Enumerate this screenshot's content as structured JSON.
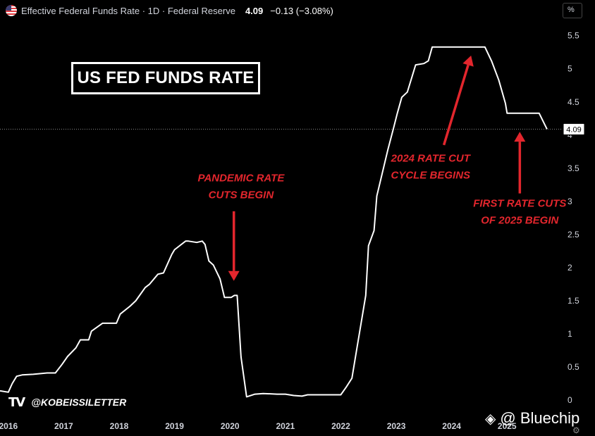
{
  "header": {
    "title": "Effective Federal Funds Rate · 1D · Federal Reserve",
    "last_value": "4.09",
    "change": "−0.13 (−3.08%)",
    "unit": "%"
  },
  "brand": {
    "logo": "TV",
    "handle": "@KOBEISSILETTER"
  },
  "watermark": {
    "icon": "binance-icon",
    "text": "@ Bluechip"
  },
  "colors": {
    "background": "#000000",
    "line": "#ffffff",
    "annotation": "#e3262d",
    "axis_text": "#d1d4dc"
  },
  "chart_data": {
    "type": "line",
    "title": "US FED FUNDS RATE",
    "xlabel": "",
    "ylabel": "%",
    "xlim": [
      2015.85,
      2025.9
    ],
    "ylim": [
      -0.18,
      5.72
    ],
    "yticks": [
      0,
      0.5,
      1,
      1.5,
      2,
      2.5,
      3,
      3.5,
      4,
      4.5,
      5,
      5.5
    ],
    "ytick_labels": [
      "0",
      "0.5",
      "1",
      "1.5",
      "2",
      "2.5",
      "3",
      "3.5",
      "4",
      "4.5",
      "5",
      "5.5"
    ],
    "xticks": [
      2016,
      2017,
      2018,
      2019,
      2020,
      2021,
      2022,
      2023,
      2024,
      2025
    ],
    "xtick_labels": [
      "2016",
      "2017",
      "2018",
      "2019",
      "2020",
      "2021",
      "2022",
      "2023",
      "2024",
      "2025"
    ],
    "last_value_label": "4.09",
    "last_value": 4.09,
    "series": [
      {
        "name": "Effective Federal Funds Rate",
        "x": [
          2015.85,
          2016.0,
          2016.07,
          2016.15,
          2016.25,
          2016.45,
          2016.7,
          2016.85,
          2016.97,
          2017.07,
          2017.22,
          2017.3,
          2017.45,
          2017.5,
          2017.7,
          2017.85,
          2017.95,
          2018.02,
          2018.2,
          2018.3,
          2018.47,
          2018.55,
          2018.7,
          2018.8,
          2018.95,
          2019.0,
          2019.2,
          2019.25,
          2019.4,
          2019.5,
          2019.55,
          2019.62,
          2019.7,
          2019.82,
          2019.9,
          2020.02,
          2020.08,
          2020.13,
          2020.2,
          2020.3,
          2020.45,
          2020.6,
          2020.85,
          2021.0,
          2021.15,
          2021.3,
          2021.4,
          2021.6,
          2021.8,
          2022.0,
          2022.1,
          2022.2,
          2022.3,
          2022.45,
          2022.5,
          2022.6,
          2022.65,
          2022.85,
          2022.95,
          2023.02,
          2023.1,
          2023.2,
          2023.35,
          2023.5,
          2023.58,
          2023.65,
          2023.8,
          2024.0,
          2024.3,
          2024.55,
          2024.6,
          2024.72,
          2024.85,
          2024.97,
          2025.0,
          2025.2,
          2025.45,
          2025.58,
          2025.72
        ],
        "values": [
          0.14,
          0.12,
          0.25,
          0.36,
          0.38,
          0.39,
          0.41,
          0.41,
          0.54,
          0.66,
          0.79,
          0.91,
          0.91,
          1.04,
          1.16,
          1.16,
          1.16,
          1.3,
          1.42,
          1.5,
          1.7,
          1.75,
          1.9,
          1.92,
          2.2,
          2.27,
          2.4,
          2.4,
          2.38,
          2.4,
          2.35,
          2.1,
          2.04,
          1.83,
          1.55,
          1.55,
          1.58,
          1.58,
          0.65,
          0.05,
          0.09,
          0.1,
          0.09,
          0.09,
          0.07,
          0.06,
          0.08,
          0.08,
          0.08,
          0.08,
          0.2,
          0.33,
          0.83,
          1.58,
          2.33,
          2.56,
          3.08,
          3.78,
          4.1,
          4.33,
          4.57,
          4.65,
          5.06,
          5.08,
          5.12,
          5.33,
          5.33,
          5.33,
          5.33,
          5.33,
          5.33,
          5.12,
          4.83,
          4.48,
          4.33,
          4.33,
          4.33,
          4.33,
          4.09
        ]
      }
    ],
    "annotations": [
      {
        "id": "pandemic",
        "lines": [
          "PANDEMIC RATE",
          "CUTS BEGIN"
        ],
        "text_x": 2020.2,
        "text_y": 3.3,
        "arrow_from": [
          2020.07,
          2.85
        ],
        "arrow_to": [
          2020.07,
          1.8
        ]
      },
      {
        "id": "cycle2024",
        "lines": [
          "2024 RATE CUT",
          "CYCLE BEGINS"
        ],
        "text_x": 2023.62,
        "text_y": 3.6,
        "arrow_from": [
          2023.86,
          3.85
        ],
        "arrow_to": [
          2024.35,
          5.2
        ]
      },
      {
        "id": "cuts2025",
        "lines": [
          "FIRST RATE CUTS",
          "OF 2025 BEGIN"
        ],
        "text_x": 2025.23,
        "text_y": 2.92,
        "arrow_from": [
          2025.23,
          3.12
        ],
        "arrow_to": [
          2025.23,
          4.05
        ]
      }
    ]
  }
}
